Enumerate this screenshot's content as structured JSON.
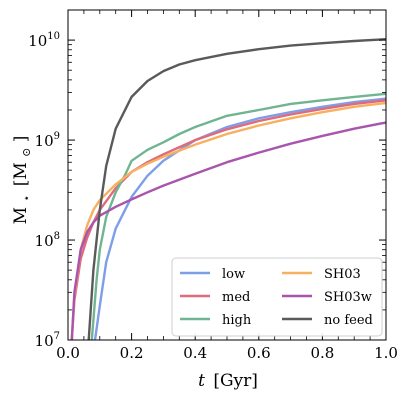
{
  "chart_data": {
    "type": "line",
    "xlabel_text": "t",
    "xlabel_unit": "[Gyr]",
    "ylabel_text": "M",
    "ylabel_sub": "⋆",
    "ylabel_unit": "[M",
    "ylabel_unit_sym": "⊙",
    "ylabel_unit_close": "]",
    "xlim": [
      0.0,
      1.0
    ],
    "ylim": [
      10000000,
      20000000000
    ],
    "yscale": "log",
    "grid": false,
    "legend_position": "lower-right",
    "x_ticks": [
      {
        "value": 0.0,
        "label": "0.0"
      },
      {
        "value": 0.2,
        "label": "0.2"
      },
      {
        "value": 0.4,
        "label": "0.4"
      },
      {
        "value": 0.6,
        "label": "0.6"
      },
      {
        "value": 0.8,
        "label": "0.8"
      },
      {
        "value": 1.0,
        "label": "1.0"
      }
    ],
    "y_ticks": [
      {
        "value": 10000000,
        "base": "10",
        "exp": "7"
      },
      {
        "value": 100000000,
        "base": "10",
        "exp": "8"
      },
      {
        "value": 1000000000,
        "base": "10",
        "exp": "9"
      },
      {
        "value": 10000000000,
        "base": "10",
        "exp": "10"
      }
    ],
    "series": [
      {
        "name": "low",
        "color": "#7f9ee8",
        "x": [
          0.085,
          0.1,
          0.12,
          0.15,
          0.2,
          0.25,
          0.3,
          0.4,
          0.5,
          0.6,
          0.7,
          0.8,
          0.9,
          1.0
        ],
        "y": [
          10000000,
          22000000,
          60000000,
          130000000,
          270000000,
          440000000,
          620000000,
          1000000000,
          1350000000,
          1650000000,
          1900000000,
          2150000000,
          2400000000,
          2600000000
        ]
      },
      {
        "name": "med",
        "color": "#e06a7b",
        "x": [
          0.012,
          0.02,
          0.04,
          0.06,
          0.08,
          0.1,
          0.15,
          0.2,
          0.25,
          0.3,
          0.4,
          0.5,
          0.6,
          0.7,
          0.8,
          0.9,
          1.0
        ],
        "y": [
          10000000,
          25000000,
          65000000,
          105000000,
          150000000,
          200000000,
          330000000,
          480000000,
          600000000,
          720000000,
          1000000000,
          1280000000,
          1550000000,
          1800000000,
          2050000000,
          2300000000,
          2500000000
        ]
      },
      {
        "name": "high",
        "color": "#71b491",
        "x": [
          0.075,
          0.09,
          0.1,
          0.12,
          0.15,
          0.18,
          0.2,
          0.25,
          0.3,
          0.35,
          0.4,
          0.5,
          0.6,
          0.7,
          0.8,
          0.9,
          1.0
        ],
        "y": [
          10000000,
          40000000,
          80000000,
          170000000,
          300000000,
          450000000,
          620000000,
          800000000,
          950000000,
          1150000000,
          1350000000,
          1750000000,
          2000000000,
          2300000000,
          2500000000,
          2700000000,
          2900000000
        ]
      },
      {
        "name": "SH03",
        "color": "#f7b060",
        "x": [
          0.012,
          0.02,
          0.04,
          0.06,
          0.08,
          0.1,
          0.15,
          0.2,
          0.25,
          0.3,
          0.4,
          0.5,
          0.6,
          0.7,
          0.8,
          0.9,
          1.0
        ],
        "y": [
          10000000,
          28000000,
          80000000,
          140000000,
          200000000,
          250000000,
          360000000,
          480000000,
          580000000,
          680000000,
          900000000,
          1150000000,
          1400000000,
          1650000000,
          1900000000,
          2150000000,
          2350000000
        ]
      },
      {
        "name": "SH03w",
        "color": "#a855ad",
        "x": [
          0.012,
          0.02,
          0.04,
          0.06,
          0.08,
          0.1,
          0.15,
          0.2,
          0.25,
          0.3,
          0.4,
          0.5,
          0.6,
          0.7,
          0.8,
          0.9,
          1.0
        ],
        "y": [
          10000000,
          30000000,
          80000000,
          120000000,
          150000000,
          175000000,
          215000000,
          255000000,
          300000000,
          350000000,
          460000000,
          600000000,
          750000000,
          920000000,
          1100000000,
          1300000000,
          1500000000
        ]
      },
      {
        "name": "no feed",
        "color": "#5a5a5a",
        "x": [
          0.065,
          0.08,
          0.1,
          0.12,
          0.15,
          0.2,
          0.25,
          0.3,
          0.35,
          0.4,
          0.5,
          0.6,
          0.7,
          0.8,
          0.9,
          1.0
        ],
        "y": [
          10000000,
          50000000,
          200000000,
          550000000,
          1300000000,
          2700000000,
          3900000000,
          4900000000,
          5700000000,
          6300000000,
          7300000000,
          8100000000,
          8800000000,
          9300000000,
          9800000000,
          10200000000
        ]
      }
    ]
  }
}
